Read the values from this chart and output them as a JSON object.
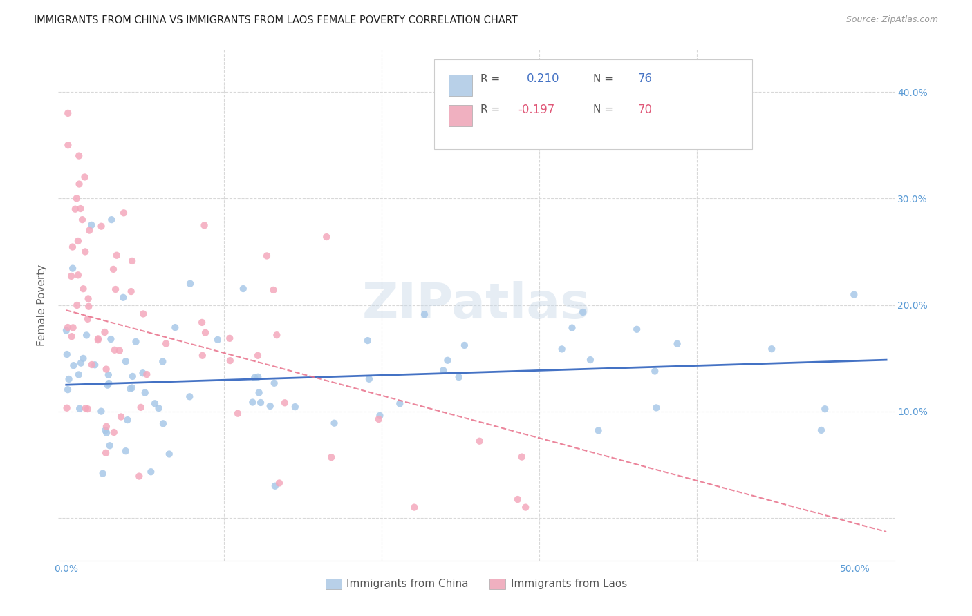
{
  "title": "IMMIGRANTS FROM CHINA VS IMMIGRANTS FROM LAOS FEMALE POVERTY CORRELATION CHART",
  "source": "Source: ZipAtlas.com",
  "ylabel": "Female Poverty",
  "x_ticks": [
    0.0,
    0.1,
    0.2,
    0.3,
    0.4,
    0.5
  ],
  "x_tick_labels": [
    "0.0%",
    "",
    "",
    "",
    "",
    "50.0%"
  ],
  "y_ticks": [
    0.0,
    0.1,
    0.2,
    0.3,
    0.4
  ],
  "y_tick_labels_right": [
    "",
    "10.0%",
    "20.0%",
    "30.0%",
    "40.0%"
  ],
  "xlim": [
    -0.005,
    0.525
  ],
  "ylim": [
    -0.04,
    0.44
  ],
  "china_R": 0.21,
  "china_N": 76,
  "laos_R": -0.197,
  "laos_N": 70,
  "china_color": "#a8c8e8",
  "laos_color": "#f4a8bc",
  "china_line_color": "#4472c4",
  "laos_line_color": "#e8708a",
  "grid_color": "#d8d8d8",
  "background_color": "#ffffff",
  "title_color": "#222222",
  "watermark_color": "#c8d8e8",
  "legend_china_color": "#b8d0e8",
  "legend_laos_color": "#f0b0c0",
  "china_line_intercept": 0.125,
  "china_line_slope": 0.045,
  "laos_line_intercept": 0.195,
  "laos_line_slope": -0.4
}
